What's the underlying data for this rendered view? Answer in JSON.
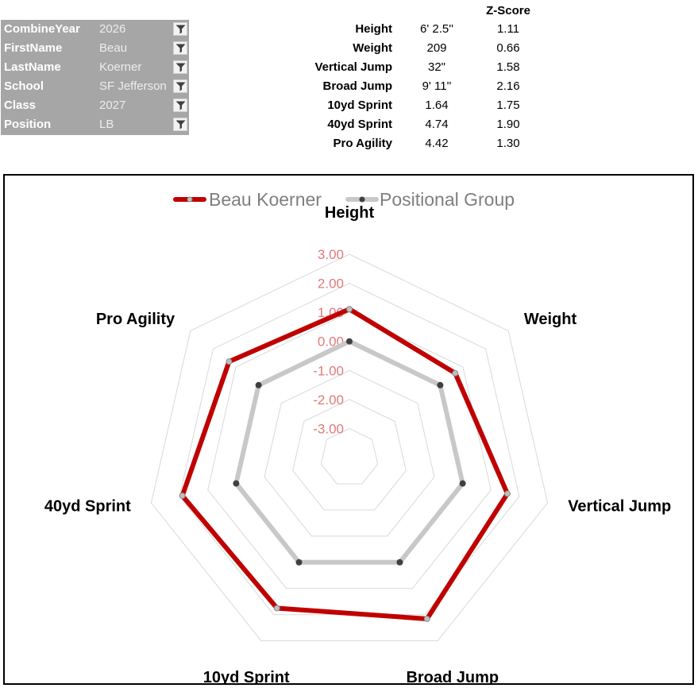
{
  "filters": [
    {
      "label": "CombineYear",
      "value": "2026"
    },
    {
      "label": "FirstName",
      "value": "Beau"
    },
    {
      "label": "LastName",
      "value": "Koerner"
    },
    {
      "label": "School",
      "value": "SF Jefferson"
    },
    {
      "label": "Class",
      "value": "2027"
    },
    {
      "label": "Position",
      "value": "LB"
    }
  ],
  "stats": {
    "zscore_header": "Z-Score",
    "rows": [
      {
        "name": "Height",
        "value": "6' 2.5''",
        "z": "1.11"
      },
      {
        "name": "Weight",
        "value": "209",
        "z": "0.66"
      },
      {
        "name": "Vertical Jump",
        "value": "32\"",
        "z": "1.58"
      },
      {
        "name": "Broad Jump",
        "value": "9' 11''",
        "z": "2.16"
      },
      {
        "name": "10yd Sprint",
        "value": "1.64",
        "z": "1.75"
      },
      {
        "name": "40yd Sprint",
        "value": "4.74",
        "z": "1.90"
      },
      {
        "name": "Pro Agility",
        "value": "4.42",
        "z": "1.30"
      }
    ]
  },
  "colors": {
    "player": "#c00000",
    "group": "#c8c8c8",
    "tick_labels": "#e07a7a",
    "grid": "#d9d9d9",
    "filter_panel": "#a6a6a6"
  },
  "chart_data": {
    "type": "radar",
    "categories": [
      "Height",
      "Weight",
      "Vertical Jump",
      "Broad Jump",
      "10yd Sprint",
      "40yd Sprint",
      "Pro Agility"
    ],
    "series": [
      {
        "name": "Beau Koerner",
        "values": [
          1.11,
          0.66,
          1.58,
          2.16,
          1.75,
          1.9,
          1.3
        ]
      },
      {
        "name": "Positional Group",
        "values": [
          0,
          0,
          0,
          0,
          0,
          0,
          0
        ]
      }
    ],
    "ticks": [
      3,
      2,
      1,
      0,
      -1,
      -2,
      -3
    ],
    "tick_labels": [
      "3.00",
      "2.00",
      "1.00",
      "0.00",
      "-1.00",
      "-2.00",
      "-3.00"
    ],
    "rmin": -4,
    "rmax": 3,
    "legend_position": "top",
    "grid": true
  }
}
